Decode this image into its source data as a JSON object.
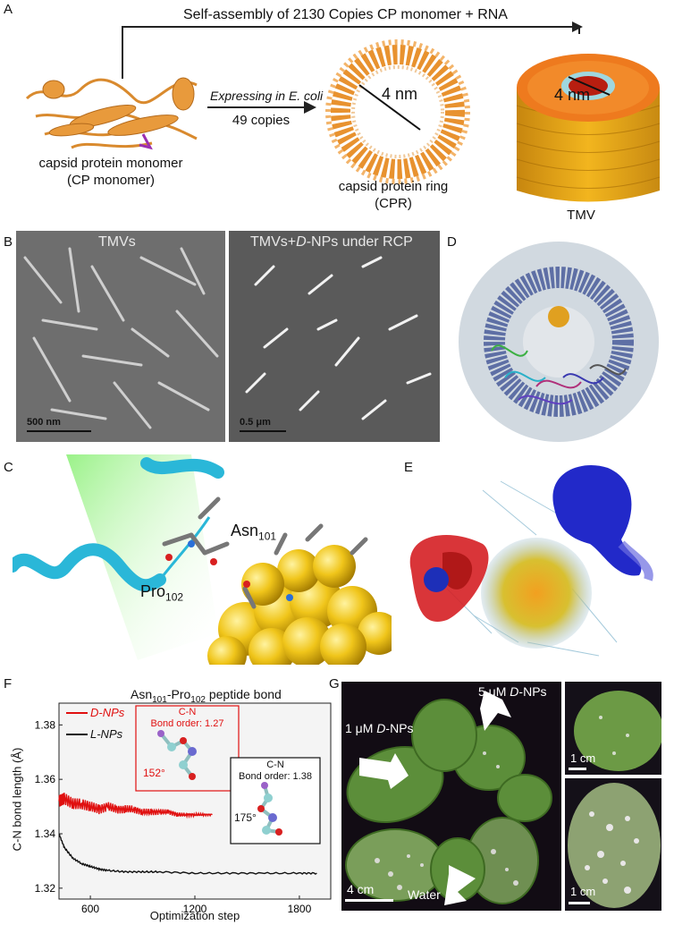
{
  "panels": {
    "A": "A",
    "B": "B",
    "C": "C",
    "D": "D",
    "E": "E",
    "F": "F",
    "G": "G"
  },
  "panelA": {
    "top_text": "Self-assembly of 2130 Copies CP monomer + RNA",
    "arrow_line1": "Expressing in ",
    "arrow_line1_italic": "E. coli",
    "arrow_line2": "49 copies",
    "monomer_label1": "capsid protein monomer",
    "monomer_label2": "(CP monomer)",
    "ring_label1": "capsid protein ring",
    "ring_label2": "(CPR)",
    "ring_dim": "4 nm",
    "tmv_dim": "4 nm",
    "tmv_label": "TMV"
  },
  "panelB": {
    "left_title": "TMVs",
    "right_title_pre": "TMVs+",
    "right_title_italic": "D",
    "right_title_post": "-NPs under RCP",
    "left_scale": "500 nm",
    "right_scale": "0.5 μm"
  },
  "panelC": {
    "res1": "Asn",
    "res1_sub": "101",
    "res2": "Pro",
    "res2_sub": "102"
  },
  "panelF": {
    "title": "Asn",
    "title_sub1": "101",
    "title_mid": "-Pro",
    "title_sub2": "102",
    "title_post": " peptide bond",
    "ylabel": "C-N bond length (Å)",
    "xlabel": "Optimization step",
    "legend_d": "D-NPs",
    "legend_l": "L-NPs",
    "inset1_title": "C-N",
    "inset1_bo": "Bond order: 1.27",
    "inset1_angle": "152°",
    "inset2_title": "C-N",
    "inset2_bo": "Bond order: 1.38",
    "inset2_angle": "175°"
  },
  "panelG": {
    "label_5": "5 μM ",
    "label_5_italic": "D",
    "label_5_post": "-NPs",
    "label_1": "1 μM ",
    "label_1_italic": "D",
    "label_1_post": "-NPs",
    "label_water": "Water",
    "scale_main": "4 cm",
    "scale_r1": "1 cm",
    "scale_r2": "1 cm"
  },
  "chart_data": {
    "type": "line",
    "title": "Asn101-Pro102 peptide bond",
    "xlabel": "Optimization step",
    "ylabel": "C-N bond length (Å)",
    "xlim": [
      420,
      1980
    ],
    "ylim": [
      1.316,
      1.388
    ],
    "xticks": [
      600,
      1200,
      1800
    ],
    "yticks": [
      1.32,
      1.34,
      1.36,
      1.38
    ],
    "series": [
      {
        "name": "D-NPs",
        "color": "#e01010",
        "x": [
          420,
          450,
          500,
          550,
          600,
          650,
          700,
          750,
          800,
          850,
          900,
          950,
          1000,
          1050,
          1100,
          1150,
          1200,
          1250,
          1300
        ],
        "y": [
          1.352,
          1.353,
          1.351,
          1.351,
          1.35,
          1.349,
          1.35,
          1.349,
          1.349,
          1.349,
          1.348,
          1.348,
          1.348,
          1.348,
          1.347,
          1.347,
          1.347,
          1.347,
          1.347
        ]
      },
      {
        "name": "L-NPs",
        "color": "#111111",
        "x": [
          420,
          450,
          500,
          550,
          600,
          650,
          700,
          800,
          900,
          1000,
          1200,
          1400,
          1600,
          1800,
          1900
        ],
        "y": [
          1.34,
          1.335,
          1.331,
          1.329,
          1.328,
          1.327,
          1.3265,
          1.326,
          1.326,
          1.326,
          1.3255,
          1.3255,
          1.3255,
          1.3255,
          1.3255
        ]
      }
    ],
    "legend_position": "top-left",
    "grid": false
  }
}
